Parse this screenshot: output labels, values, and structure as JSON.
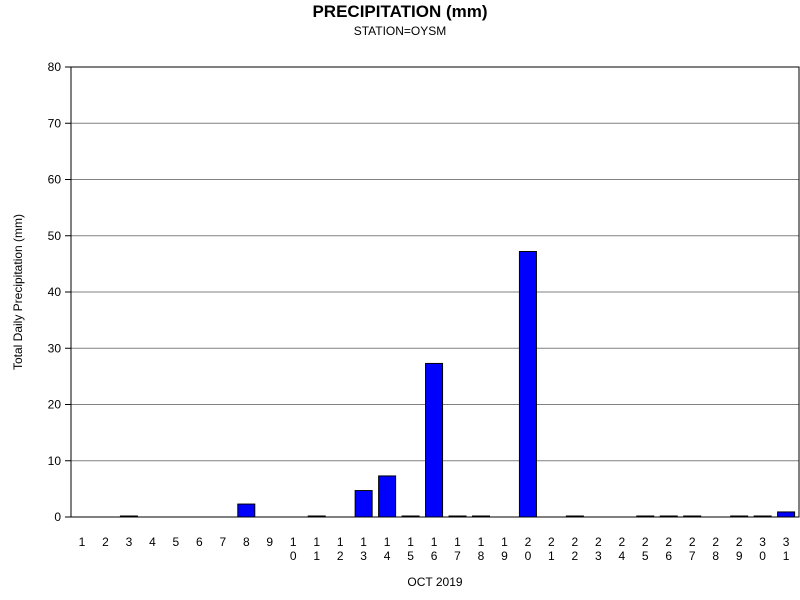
{
  "chart_data": {
    "type": "bar",
    "title": "PRECIPITATION (mm)",
    "subtitle": "STATION=OYSM",
    "xlabel": "OCT 2019",
    "ylabel": "Total Daily Precipitation (mm)",
    "ylim": [
      0,
      80
    ],
    "yticks": [
      0,
      10,
      20,
      30,
      40,
      50,
      60,
      70,
      80
    ],
    "grid": true,
    "bar_color": "#0000ff",
    "categories": [
      "1",
      "2",
      "3",
      "4",
      "5",
      "6",
      "7",
      "8",
      "9",
      "10",
      "11",
      "12",
      "13",
      "14",
      "15",
      "16",
      "17",
      "18",
      "19",
      "20",
      "21",
      "22",
      "23",
      "24",
      "25",
      "26",
      "27",
      "28",
      "29",
      "30",
      "31"
    ],
    "values": [
      0,
      0,
      0.1,
      0,
      0,
      0,
      0,
      2.3,
      0,
      0,
      0.1,
      0,
      4.7,
      7.3,
      0.1,
      27.3,
      0.1,
      0.1,
      0,
      47.2,
      0,
      0.1,
      0,
      0,
      0.1,
      0.1,
      0.1,
      0,
      0.1,
      0.1,
      0.9
    ]
  }
}
